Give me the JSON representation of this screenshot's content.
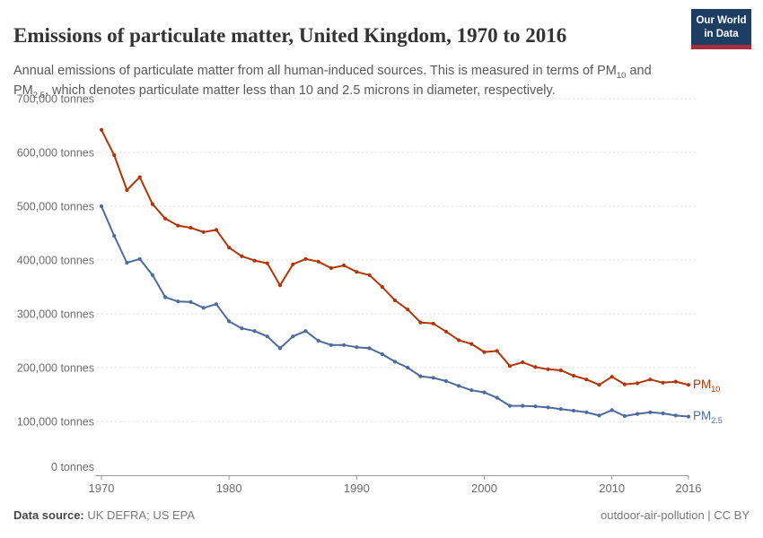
{
  "logo": {
    "line1": "Our World",
    "line2": "in Data",
    "bg_color": "#1d3d63",
    "stripe_color": "#a82c3c"
  },
  "footer": {
    "data_source_label": "Data source:",
    "data_source_value": " UK DEFRA; US EPA",
    "note": "outdoor-air-pollution | CC BY"
  },
  "chart_data": {
    "type": "line",
    "title": "Emissions of particulate matter, United Kingdom, 1970 to 2016",
    "subtitle_parts": [
      {
        "t": "Annual emissions of particulate matter from all human-induced sources. This is measured in terms of PM"
      },
      {
        "sub": "10"
      },
      {
        "t": " and PM"
      },
      {
        "sub": "2.5"
      },
      {
        "t": ", which denotes particulate matter less than 10 and 2.5 microns in diameter, respectively."
      }
    ],
    "unit": "tonnes",
    "grid": "dashed-horizontal",
    "legend_position": "right-end-of-line",
    "ylim": [
      0,
      700000
    ],
    "yticks": [
      {
        "v": 0,
        "label": "0 tonnes"
      },
      {
        "v": 100000,
        "label": "100,000 tonnes"
      },
      {
        "v": 200000,
        "label": "200,000 tonnes"
      },
      {
        "v": 300000,
        "label": "300,000 tonnes"
      },
      {
        "v": 400000,
        "label": "400,000 tonnes"
      },
      {
        "v": 500000,
        "label": "500,000 tonnes"
      },
      {
        "v": 600000,
        "label": "600,000 tonnes"
      },
      {
        "v": 700000,
        "label": "700,000 tonnes"
      }
    ],
    "xticks": [
      1970,
      1980,
      1990,
      2000,
      2010,
      2016
    ],
    "x": [
      1970,
      1971,
      1972,
      1973,
      1974,
      1975,
      1976,
      1977,
      1978,
      1979,
      1980,
      1981,
      1982,
      1983,
      1984,
      1985,
      1986,
      1987,
      1988,
      1989,
      1990,
      1991,
      1992,
      1993,
      1994,
      1995,
      1996,
      1997,
      1998,
      1999,
      2000,
      2001,
      2002,
      2003,
      2004,
      2005,
      2006,
      2007,
      2008,
      2009,
      2010,
      2011,
      2012,
      2013,
      2014,
      2015,
      2016
    ],
    "series": [
      {
        "name": "pm10",
        "label_base": "PM",
        "label_sub": "10",
        "color": "#b13507",
        "values": [
          642000,
          595000,
          530000,
          554000,
          504000,
          477000,
          464000,
          460000,
          452000,
          456000,
          423000,
          407000,
          399000,
          394000,
          353000,
          392000,
          402000,
          397000,
          385000,
          390000,
          378000,
          372000,
          350000,
          325000,
          308000,
          284000,
          282000,
          267000,
          251000,
          244000,
          229000,
          231000,
          203000,
          210000,
          201000,
          197000,
          195000,
          185000,
          178000,
          168000,
          183000,
          169000,
          171000,
          178000,
          172000,
          174000,
          168000
        ]
      },
      {
        "name": "pm25",
        "label_base": "PM",
        "label_sub": "2.5",
        "color": "#4c6a9c",
        "values": [
          500000,
          445000,
          395000,
          402000,
          372000,
          331000,
          323000,
          322000,
          311000,
          318000,
          286000,
          273000,
          268000,
          258000,
          236000,
          258000,
          268000,
          250000,
          242000,
          242000,
          238000,
          236000,
          225000,
          211000,
          200000,
          184000,
          181000,
          175000,
          166000,
          158000,
          154000,
          144000,
          129000,
          129000,
          128000,
          126000,
          123000,
          120000,
          117000,
          111000,
          121000,
          110000,
          114000,
          117000,
          115000,
          111000,
          109000
        ]
      }
    ]
  }
}
